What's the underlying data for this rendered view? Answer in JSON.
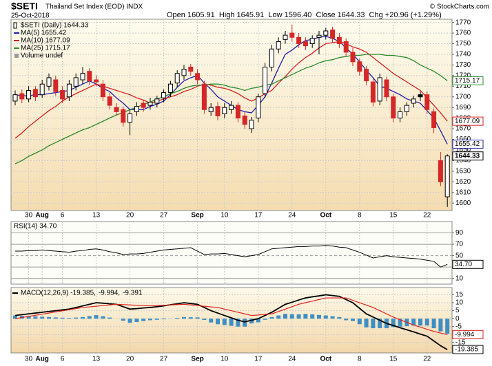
{
  "header": {
    "symbol": "$SETI",
    "title": "Thailand Set Index (EOD) INDX",
    "date": "25-Oct-2018",
    "quote": "Open 1605.91  High 1645.91  Low 1596.40  Close 1644.33  Chg +20.96 (+1.29%)",
    "credit": "© StockCharts.com"
  },
  "chart_data": [
    {
      "type": "candlestick",
      "name": "$SETI (Daily) 1644.33",
      "extra_legend": "Volume undef",
      "up_color": "#000000",
      "down_color": "#d62728",
      "grid": true,
      "categories": [
        null,
        null,
        "30",
        null,
        "Aug",
        null,
        null,
        "6",
        null,
        null,
        null,
        null,
        "13",
        null,
        null,
        null,
        null,
        "20",
        null,
        null,
        null,
        null,
        "27",
        null,
        null,
        null,
        null,
        "Sep",
        null,
        null,
        null,
        "10",
        null,
        null,
        null,
        null,
        "17",
        null,
        null,
        null,
        null,
        "24",
        null,
        null,
        null,
        null,
        "Oct",
        null,
        null,
        null,
        null,
        "8",
        null,
        null,
        null,
        null,
        "15",
        null,
        null,
        null,
        null,
        "22",
        null,
        null,
        null
      ],
      "open": [
        1696,
        1703,
        1698,
        1707,
        1702,
        1710,
        1716,
        1706,
        1700,
        1710,
        1716,
        1724,
        1716,
        1712,
        1700,
        1690,
        1688,
        1676,
        1686,
        1694,
        1692,
        1694,
        1699,
        1704,
        1713,
        1720,
        1728,
        1722,
        1712,
        1686,
        1691,
        1684,
        1688,
        1692,
        1682,
        1670,
        1680,
        1703,
        1728,
        1745,
        1754,
        1760,
        1756,
        1752,
        1750,
        1756,
        1758,
        1763,
        1756,
        1752,
        1742,
        1733,
        1726,
        1714,
        1696,
        1716,
        1700,
        1680,
        1686,
        1694,
        1702,
        1702,
        1686,
        1640,
        1605.91
      ],
      "high": [
        1706,
        1707,
        1710,
        1710,
        1716,
        1722,
        1720,
        1710,
        1716,
        1722,
        1728,
        1727,
        1720,
        1716,
        1704,
        1694,
        1691,
        1688,
        1695,
        1697,
        1699,
        1701,
        1707,
        1715,
        1725,
        1730,
        1731,
        1726,
        1715,
        1694,
        1695,
        1694,
        1696,
        1695,
        1686,
        1681,
        1703,
        1732,
        1749,
        1756,
        1762,
        1768,
        1760,
        1756,
        1758,
        1762,
        1765,
        1766,
        1760,
        1755,
        1746,
        1736,
        1729,
        1717,
        1722,
        1719,
        1703,
        1690,
        1695,
        1701,
        1705,
        1705,
        1689,
        1648,
        1645.91
      ],
      "low": [
        1692,
        1694,
        1695,
        1696,
        1699,
        1706,
        1701,
        1694,
        1696,
        1706,
        1712,
        1711,
        1710,
        1696,
        1688,
        1682,
        1672,
        1664,
        1682,
        1686,
        1688,
        1690,
        1695,
        1700,
        1709,
        1716,
        1720,
        1712,
        1684,
        1682,
        1678,
        1680,
        1684,
        1676,
        1670,
        1666,
        1676,
        1699,
        1724,
        1741,
        1750,
        1752,
        1746,
        1744,
        1746,
        1740,
        1754,
        1751,
        1746,
        1738,
        1729,
        1720,
        1711,
        1691,
        1692,
        1696,
        1676,
        1676,
        1682,
        1690,
        1696,
        1684,
        1666,
        1616,
        1596.4
      ],
      "close": [
        1702,
        1698,
        1706,
        1700,
        1712,
        1718,
        1705,
        1698,
        1712,
        1718,
        1722,
        1715,
        1714,
        1700,
        1692,
        1686,
        1676,
        1684,
        1691,
        1690,
        1695,
        1698,
        1704,
        1712,
        1722,
        1726,
        1724,
        1716,
        1688,
        1690,
        1682,
        1690,
        1692,
        1680,
        1674,
        1678,
        1700,
        1728,
        1745,
        1752,
        1758,
        1756,
        1750,
        1748,
        1755,
        1758,
        1762,
        1755,
        1750,
        1742,
        1733,
        1724,
        1715,
        1695,
        1718,
        1700,
        1680,
        1686,
        1692,
        1698,
        1700,
        1688,
        1671,
        1620,
        1644.33
      ],
      "series": [
        {
          "name": "MA(5) 1655.42",
          "color": "#1f1fa8",
          "values": [
            1702,
            1701,
            1701,
            1702,
            1702,
            1703,
            1704,
            1705,
            1706,
            1709,
            1712,
            1715,
            1712,
            1708,
            1705,
            1699,
            1694,
            1688,
            1688,
            1688,
            1691,
            1693,
            1696,
            1702,
            1709,
            1715,
            1718,
            1720,
            1713,
            1707,
            1700,
            1696,
            1692,
            1688,
            1686,
            1685,
            1692,
            1700,
            1713,
            1727,
            1740,
            1744,
            1749,
            1753,
            1754,
            1756,
            1757,
            1755,
            1752,
            1746,
            1740,
            1733,
            1725,
            1718,
            1710,
            1708,
            1705,
            1702,
            1698,
            1696,
            1694,
            1687,
            1680,
            1668,
            1655.42
          ]
        },
        {
          "name": "MA(10) 1677.09",
          "color": "#d62020",
          "values": [
            1661,
            1666,
            1672,
            1677,
            1682,
            1687,
            1691,
            1696,
            1700,
            1703,
            1706,
            1709,
            1712,
            1710,
            1708,
            1706,
            1704,
            1702,
            1699,
            1697,
            1694,
            1696,
            1698,
            1700,
            1702,
            1705,
            1707,
            1710,
            1712,
            1711,
            1709,
            1708,
            1706,
            1703,
            1699,
            1696,
            1699,
            1703,
            1706,
            1713,
            1719,
            1726,
            1732,
            1737,
            1741,
            1746,
            1750,
            1751,
            1752,
            1750,
            1747,
            1745,
            1742,
            1737,
            1732,
            1727,
            1722,
            1718,
            1714,
            1710,
            1706,
            1699,
            1692,
            1685,
            1677.09
          ]
        },
        {
          "name": "MA(25) 1715.17",
          "color": "#2a8a2a",
          "values": [
            1637,
            1640,
            1644,
            1647,
            1650,
            1654,
            1657,
            1660,
            1663,
            1666,
            1669,
            1671,
            1674,
            1677,
            1680,
            1683,
            1685,
            1688,
            1690,
            1693,
            1695,
            1698,
            1700,
            1703,
            1705,
            1708,
            1710,
            1711,
            1711,
            1712,
            1712,
            1711,
            1709,
            1708,
            1706,
            1708,
            1709,
            1711,
            1712,
            1715,
            1718,
            1721,
            1724,
            1727,
            1729,
            1732,
            1734,
            1735,
            1737,
            1738,
            1739,
            1739,
            1740,
            1740,
            1740,
            1739,
            1739,
            1738,
            1737,
            1734,
            1730,
            1727,
            1724,
            1720,
            1715.17
          ]
        }
      ],
      "ylim": [
        1593,
        1773
      ],
      "yticks": [
        1600,
        1610,
        1620,
        1630,
        1640,
        1650,
        1660,
        1670,
        1680,
        1690,
        1700,
        1710,
        1720,
        1730,
        1740,
        1750,
        1760,
        1770
      ]
    },
    {
      "type": "line",
      "title": "RSI(14) 34.70",
      "last_label": "34.70",
      "grid": true,
      "series": [
        {
          "color": "#000000",
          "values": [
            58,
            58,
            59,
            59,
            60,
            59,
            58,
            57,
            56,
            58,
            59,
            61,
            62,
            60,
            57,
            55,
            52,
            53,
            53,
            54,
            56,
            58,
            60,
            61,
            62,
            63,
            64,
            58,
            52,
            53,
            53,
            54,
            52,
            50,
            48,
            50,
            52,
            57,
            62,
            63,
            64,
            65,
            66,
            66,
            67,
            67,
            68,
            67,
            65,
            64,
            60,
            56,
            51,
            46,
            48,
            50,
            48,
            47,
            46,
            45,
            44,
            42,
            40,
            30,
            34.7
          ]
        }
      ],
      "ylim": [
        0,
        110
      ],
      "yticks": [
        10,
        30,
        50,
        70,
        90
      ]
    },
    {
      "type": "combo",
      "grid": true,
      "series": [
        {
          "name": "MACD(12,26,9) -19.385,",
          "type": "line",
          "color": "#000000",
          "values": [
            2,
            2.5,
            3,
            3.5,
            4,
            4.5,
            5,
            5.5,
            6,
            7,
            8,
            9,
            10,
            9.7,
            9.3,
            9,
            7.5,
            6,
            6.3,
            6.7,
            7,
            7.5,
            8,
            8.7,
            9.3,
            10,
            9.5,
            9,
            7,
            5,
            3.5,
            2,
            0.5,
            -1,
            -2,
            -1,
            0,
            2,
            4,
            6.5,
            9,
            10.3,
            11.7,
            13,
            13.7,
            14.3,
            15,
            14.5,
            14,
            12,
            10,
            6.5,
            3,
            1,
            -1,
            -3,
            -4.3,
            -5.7,
            -7,
            -8.3,
            -9.7,
            -11,
            -14,
            -17,
            -19.385
          ]
        },
        {
          "name": "-9.994,",
          "type": "line",
          "color": "#e0201b",
          "values": [
            0,
            0.7,
            1.4,
            2.1,
            2.8,
            3.5,
            4.2,
            4.9,
            5.6,
            6.3,
            7,
            7.4,
            7.8,
            8.2,
            8.6,
            9,
            8.8,
            8.6,
            8.4,
            8.2,
            8,
            8.2,
            8.4,
            8.6,
            8.8,
            9,
            8.6,
            8.2,
            7.8,
            7.4,
            7,
            6,
            5,
            4,
            3,
            2,
            2.3,
            2.7,
            3,
            4.5,
            6,
            7.5,
            9,
            10,
            11,
            12,
            13,
            13,
            13,
            13,
            11.5,
            10,
            8.5,
            7,
            5,
            3,
            1,
            -0.7,
            -2.3,
            -4,
            -5.3,
            -6.7,
            -8,
            -9,
            -9.994
          ]
        },
        {
          "name": "-9.391",
          "type": "bar",
          "color": "#3e8ec4",
          "values": [
            2,
            1.8,
            1.6,
            1.4,
            1.2,
            1,
            0.8,
            0.6,
            0.4,
            0.7,
            1,
            1.6,
            2.2,
            1.5,
            0.7,
            0,
            -1.3,
            -2.6,
            -2.1,
            -1.5,
            -1,
            -0.7,
            -0.4,
            0.1,
            0.5,
            1,
            0.9,
            0.8,
            -0.8,
            -2.4,
            -3.5,
            -4,
            -4.5,
            -5,
            -5,
            -3,
            -2.3,
            -0.7,
            1,
            2,
            3,
            2.8,
            2.7,
            3,
            2.7,
            2.3,
            2,
            1.5,
            1,
            -1,
            -1.5,
            -3.5,
            -5.5,
            -6,
            -6,
            -6,
            -5.3,
            -5,
            -4.7,
            -4.3,
            -4.4,
            -4.3,
            -6,
            -8,
            -9.391
          ]
        }
      ],
      "ylim": [
        -21.5,
        19.5
      ],
      "yticks": [
        -15,
        -10,
        -5,
        0,
        5,
        10,
        15
      ]
    }
  ]
}
